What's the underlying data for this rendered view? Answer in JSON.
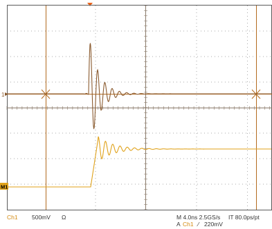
{
  "status_bar": {
    "ch1_label": "Ch1",
    "ch1_scale": "500mV",
    "ch1_coupling": "Ω",
    "timebase": "M 4.0ns 2.5GS/s",
    "record": "IT 80.0ps/pt",
    "trigger_prefix": "A",
    "trigger_source": "Ch1",
    "trigger_slope": "⁄",
    "trigger_level": "220mV"
  },
  "markers": {
    "math_marker_number": "1",
    "ch1_marker": "M1"
  },
  "colors": {
    "ch1": "#e0a21a",
    "math": "#8a5a2e",
    "trigger": "#e8621a",
    "grid": "#a8a8a8"
  }
}
